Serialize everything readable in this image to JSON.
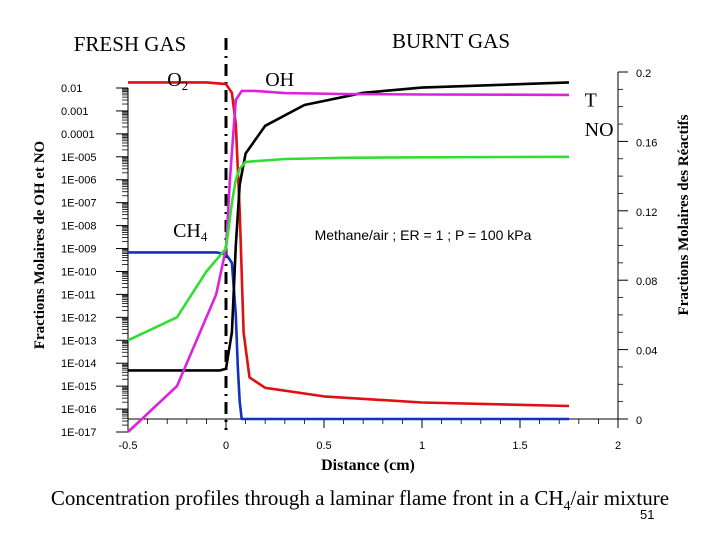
{
  "slide": {
    "caption_prefix": "Concentration profiles through a laminar flame front in a CH",
    "caption_sub": "4",
    "caption_suffix": "/air mixture",
    "page_number": "51"
  },
  "chart_data": {
    "type": "line",
    "title": "",
    "annotation": "Methane/air ; ER = 1 ; P = 100 kPa",
    "region_labels": {
      "left": "FRESH GAS",
      "right": "BURNT GAS"
    },
    "xlabel": "Distance (cm)",
    "ylabel_left": "Fractions Molaires de OH et NO",
    "ylabel_right": "Fractions Molaires des Réactifs",
    "xlim": [
      -0.5,
      2.0
    ],
    "x_ticks": [
      -0.5,
      0,
      0.5,
      1,
      1.5,
      2
    ],
    "x_tick_labels": [
      "-0.5",
      "0",
      "0.5",
      "1",
      "1.5",
      "2"
    ],
    "ylim_left_log": [
      1e-17,
      0.01
    ],
    "y_ticks_left": [
      1e-17,
      1e-16,
      1e-15,
      1e-14,
      1e-13,
      1e-12,
      1e-11,
      1e-10,
      1e-09,
      1e-08,
      1e-07,
      1e-06,
      1e-05,
      0.0001,
      0.001,
      0.01
    ],
    "y_tick_labels_left": [
      "1E-017",
      "1E-016",
      "1E-015",
      "1E-014",
      "1E-013",
      "1E-012",
      "1E-011",
      "1E-010",
      "1E-009",
      "1E-008",
      "1E-007",
      "1E-006",
      "1E-005",
      "0.0001",
      "0.001",
      "0.01"
    ],
    "ylim_right": [
      0,
      0.2
    ],
    "y_ticks_right": [
      0,
      0.04,
      0.08,
      0.12,
      0.16,
      0.2
    ],
    "y_tick_labels_right": [
      "0",
      "0.04",
      "0.08",
      "0.12",
      "0.16",
      "0.2"
    ],
    "flame_front_x": 0.0,
    "series": [
      {
        "name": "O2",
        "label_main": "O",
        "label_sub": "2",
        "axis": "right",
        "color": "#dd1111",
        "points": [
          [
            -0.5,
            0.194
          ],
          [
            -0.1,
            0.194
          ],
          [
            0.0,
            0.193
          ],
          [
            0.03,
            0.188
          ],
          [
            0.05,
            0.17
          ],
          [
            0.07,
            0.12
          ],
          [
            0.09,
            0.05
          ],
          [
            0.12,
            0.024
          ],
          [
            0.2,
            0.018
          ],
          [
            0.5,
            0.013
          ],
          [
            1.0,
            0.0095
          ],
          [
            1.75,
            0.0075
          ]
        ]
      },
      {
        "name": "CH4",
        "label_main": "CH",
        "label_sub": "4",
        "axis": "right",
        "color": "#1133bb",
        "points": [
          [
            -0.5,
            0.096
          ],
          [
            -0.05,
            0.096
          ],
          [
            0.0,
            0.095
          ],
          [
            0.03,
            0.09
          ],
          [
            0.05,
            0.06
          ],
          [
            0.06,
            0.03
          ],
          [
            0.07,
            0.01
          ],
          [
            0.08,
            0.0
          ],
          [
            1.75,
            0.0
          ]
        ]
      },
      {
        "name": "T",
        "label_main": "T",
        "label_sub": "",
        "axis": "right",
        "color": "#000000",
        "points": [
          [
            -0.5,
            0.028
          ],
          [
            -0.03,
            0.028
          ],
          [
            0.0,
            0.029
          ],
          [
            0.03,
            0.05
          ],
          [
            0.05,
            0.1
          ],
          [
            0.07,
            0.135
          ],
          [
            0.1,
            0.153
          ],
          [
            0.2,
            0.169
          ],
          [
            0.4,
            0.181
          ],
          [
            0.7,
            0.188
          ],
          [
            1.0,
            0.191
          ],
          [
            1.75,
            0.194
          ]
        ]
      },
      {
        "name": "OH",
        "label_main": "OH",
        "label_sub": "",
        "axis": "left_log",
        "color": "#dd22dd",
        "points": [
          [
            -0.5,
            1e-17
          ],
          [
            -0.25,
            1e-15
          ],
          [
            -0.15,
            1e-13
          ],
          [
            -0.05,
            1e-11
          ],
          [
            0.0,
            1e-09
          ],
          [
            0.02,
            1e-06
          ],
          [
            0.05,
            0.003
          ],
          [
            0.08,
            0.0075
          ],
          [
            0.15,
            0.0075
          ],
          [
            0.3,
            0.006
          ],
          [
            0.6,
            0.0055
          ],
          [
            1.0,
            0.0052
          ],
          [
            1.75,
            0.005
          ]
        ]
      },
      {
        "name": "NO",
        "label_main": "NO",
        "label_sub": "",
        "axis": "left_log",
        "color": "#33dd33",
        "points": [
          [
            -0.5,
            1e-13
          ],
          [
            -0.25,
            1e-12
          ],
          [
            -0.1,
            1e-10
          ],
          [
            0.0,
            1e-09
          ],
          [
            0.03,
            1e-07
          ],
          [
            0.05,
            1e-06
          ],
          [
            0.07,
            3e-06
          ],
          [
            0.1,
            6e-06
          ],
          [
            0.3,
            8e-06
          ],
          [
            0.6,
            9e-06
          ],
          [
            1.0,
            9.5e-06
          ],
          [
            1.75,
            1e-05
          ]
        ]
      }
    ],
    "series_label_positions": [
      {
        "series": "O2",
        "x": -0.3,
        "y_right": 0.192
      },
      {
        "series": "OH",
        "x": 0.2,
        "y_right": 0.192
      },
      {
        "series": "T",
        "x": 1.83,
        "y_right": 0.18
      },
      {
        "series": "NO",
        "x": 1.83,
        "y_right": 0.163
      },
      {
        "series": "CH4",
        "x": -0.27,
        "y_right": 0.105
      }
    ]
  }
}
